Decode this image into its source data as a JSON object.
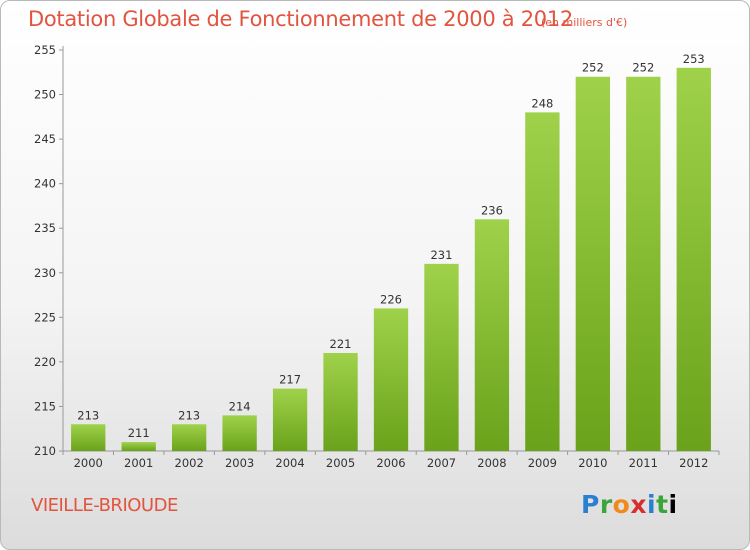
{
  "header": {
    "title": "Dotation Globale de Fonctionnement de 2000 à 2012",
    "unit": "(en milliers d'€)"
  },
  "footer": {
    "place": "VIEILLE-BRIOUDE",
    "logo_letters": [
      "P",
      "r",
      "o",
      "x",
      "i",
      "t",
      "i"
    ]
  },
  "chart_data": {
    "type": "bar",
    "title": "Dotation Globale de Fonctionnement de 2000 à 2012",
    "subtitle": "(en milliers d'€)",
    "xlabel": "",
    "ylabel": "",
    "categories": [
      "2000",
      "2001",
      "2002",
      "2003",
      "2004",
      "2005",
      "2006",
      "2007",
      "2008",
      "2009",
      "2010",
      "2011",
      "2012"
    ],
    "values": [
      213,
      211,
      213,
      214,
      217,
      221,
      226,
      231,
      236,
      248,
      252,
      252,
      253
    ],
    "ylim": [
      210,
      255
    ],
    "yticks": [
      210,
      215,
      220,
      225,
      230,
      235,
      240,
      245,
      250,
      255
    ],
    "grid": false,
    "legend": "none",
    "colors": {
      "bar_top": "#9fd24a",
      "bar_bottom": "#6aa21b",
      "axis": "#999999"
    }
  }
}
